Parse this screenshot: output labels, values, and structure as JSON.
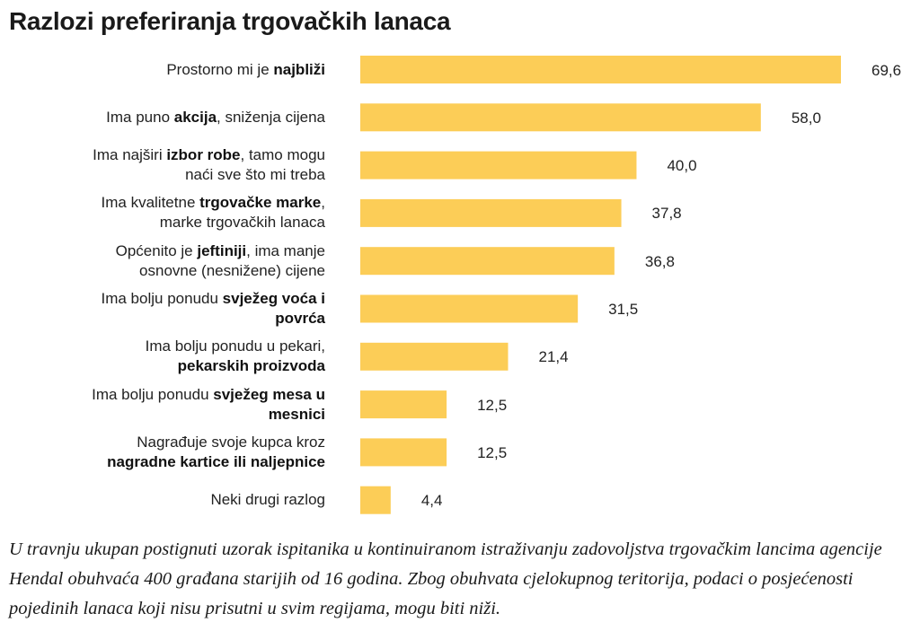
{
  "title": "Razlozi preferiranja trgovačkih lanaca",
  "footnote": "U travnju ukupan postignuti uzorak ispitanika u kontinuiranom istraživanju zadovoljstva trgovačkim lancima agencije Hendal obuhvaća 400 građana starijih od 16 godina. Zbog obuhvata cjelokupnog teritorija, podaci o posjećenosti pojedinih lanaca koji nisu prisutni u svim regijama, mogu biti niži.",
  "colors": {
    "bar": "#fccd57"
  },
  "chart_data": {
    "type": "bar",
    "orientation": "horizontal",
    "title": "Razlozi preferiranja trgovačkih lanaca",
    "categories": [
      "Prostorno mi je najbliži",
      "Ima puno akcija, sniženja cijena",
      "Ima najširi izbor robe, tamo mogu naći sve što mi treba",
      "Ima kvalitetne trgovačke marke, marke trgovačkih lanaca",
      "Općenito je jeftiniji, ima manje osnovne (nesnižene) cijene",
      "Ima bolju ponudu svježeg voća i povrća",
      "Ima bolju ponudu u pekari, pekarskih proizvoda",
      "Ima bolju ponudu svježeg mesa u mesnici",
      "Nagrađuje svoje kupca kroz nagradne kartice ili naljepnice",
      "Neki drugi razlog"
    ],
    "label_parts": [
      [
        {
          "t": "Prostorno mi je ",
          "b": false
        },
        {
          "t": "najbliži",
          "b": true
        }
      ],
      [
        {
          "t": "Ima puno ",
          "b": false
        },
        {
          "t": "akcija",
          "b": true
        },
        {
          "t": ", sniženja cijena",
          "b": false
        }
      ],
      [
        {
          "t": "Ima najširi ",
          "b": false
        },
        {
          "t": "izbor robe",
          "b": true
        },
        {
          "t": ", tamo mogu\nnaći sve što mi treba",
          "b": false
        }
      ],
      [
        {
          "t": "Ima kvalitetne ",
          "b": false
        },
        {
          "t": "trgovačke marke",
          "b": true
        },
        {
          "t": ",\nmarke trgovačkih lanaca",
          "b": false
        }
      ],
      [
        {
          "t": "Općenito je ",
          "b": false
        },
        {
          "t": "jeftiniji",
          "b": true
        },
        {
          "t": ", ima manje\nosnovne (nesnižene) cijene",
          "b": false
        }
      ],
      [
        {
          "t": "Ima bolju ponudu ",
          "b": false
        },
        {
          "t": "svježeg voća i\npovrća",
          "b": true
        }
      ],
      [
        {
          "t": "Ima bolju ponudu u pekari,\n",
          "b": false
        },
        {
          "t": "pekarskih proizvoda",
          "b": true
        }
      ],
      [
        {
          "t": "Ima bolju ponudu ",
          "b": false
        },
        {
          "t": "svježeg mesa u\nmesnici",
          "b": true
        }
      ],
      [
        {
          "t": "Nagrađuje svoje kupca kroz\n",
          "b": false
        },
        {
          "t": "nagradne kartice ili naljepnice",
          "b": true
        }
      ],
      [
        {
          "t": "Neki drugi razlog",
          "b": false
        }
      ]
    ],
    "values": [
      69.6,
      58.0,
      40.0,
      37.8,
      36.8,
      31.5,
      21.4,
      12.5,
      12.5,
      4.4
    ],
    "value_labels": [
      "69,6",
      "58,0",
      "40,0",
      "37,8",
      "36,8",
      "31,5",
      "21,4",
      "12,5",
      "12,5",
      "4,4"
    ],
    "xlim": [
      0,
      69.6
    ],
    "grid": false,
    "legend": "none"
  }
}
